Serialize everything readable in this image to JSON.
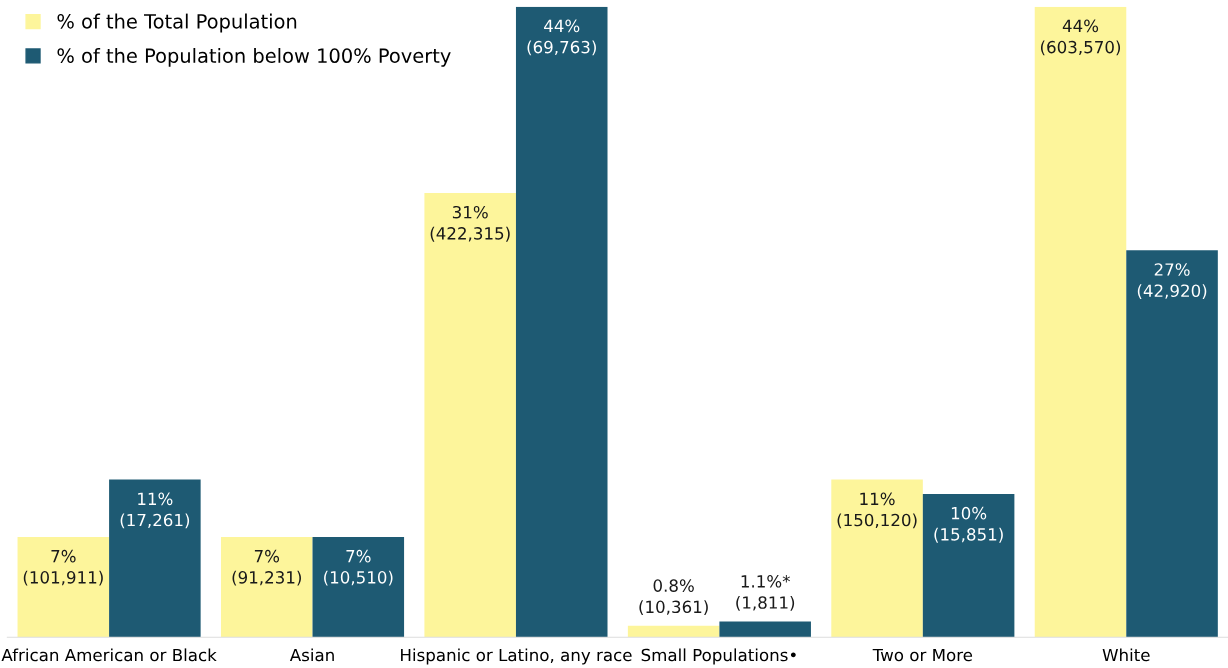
{
  "chart_data": {
    "type": "bar",
    "categories": [
      "African American or Black",
      "Asian",
      "Hispanic or Latino, any race",
      "Small Populations•",
      "Two or More",
      "White"
    ],
    "series": [
      {
        "name": "% of the Total Population",
        "color": "#fdf59b",
        "values": [
          7,
          7,
          31,
          0.8,
          11,
          44
        ],
        "value_labels": [
          "7%\n(101,911)",
          "7%\n(91,231)",
          "31%\n(422,315)",
          "0.8%\n(10,361)",
          "11%\n(150,120)",
          "44%\n(603,570)"
        ]
      },
      {
        "name": "% of the Population below 100% Poverty",
        "color": "#1e5a73",
        "values": [
          11,
          7,
          44,
          1.1,
          10,
          27
        ],
        "value_labels": [
          "11%\n(17,261)",
          "7%\n(10,510)",
          "44%\n(69,763)",
          "1.1%*\n(1,811)",
          "10%\n(15,851)",
          "27%\n(42,920)"
        ]
      }
    ],
    "legend": "top left",
    "grid": false
  }
}
